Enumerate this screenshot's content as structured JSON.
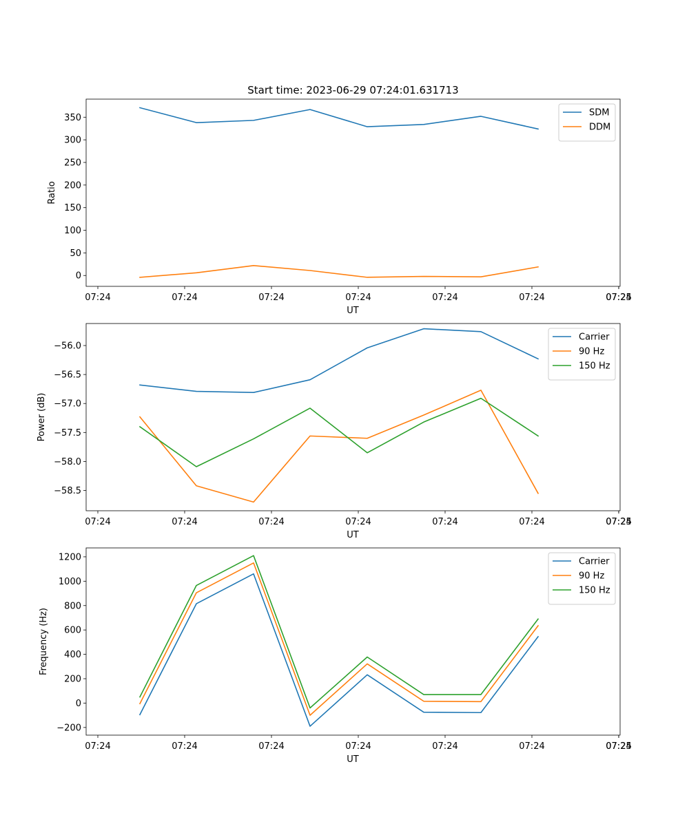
{
  "chart_data": [
    {
      "type": "line",
      "title": "Start time: 2023-06-29 07:24:01.631713",
      "xlabel": "UT",
      "ylabel": "Ratio",
      "x_tick_labels": [
        "07:24",
        "07:24",
        "07:24",
        "07:24",
        "07:24",
        "07:24",
        "07:24",
        "07:25"
      ],
      "y_ticks": [
        0,
        50,
        100,
        150,
        200,
        250,
        300,
        350
      ],
      "y_tick_labels": [
        "0",
        "50",
        "100",
        "150",
        "200",
        "250",
        "300",
        "350"
      ],
      "ylim": [
        -24,
        390
      ],
      "legend_position": "upper right",
      "series": [
        {
          "name": "SDM",
          "color": "#1f77b4",
          "values": [
            371,
            338,
            343,
            367,
            329,
            334,
            352,
            324
          ]
        },
        {
          "name": "DDM",
          "color": "#ff7f0e",
          "values": [
            -4,
            6,
            22,
            11,
            -4,
            -2,
            -3,
            19
          ]
        }
      ]
    },
    {
      "type": "line",
      "title": "",
      "xlabel": "UT",
      "ylabel": "Power (dB)",
      "x_tick_labels": [
        "07:24",
        "07:24",
        "07:24",
        "07:24",
        "07:24",
        "07:24",
        "07:24",
        "07:25"
      ],
      "y_ticks": [
        -58.5,
        -58.0,
        -57.5,
        -57.0,
        -56.5,
        -56.0
      ],
      "y_tick_labels": [
        "−58.5",
        "−58.0",
        "−57.5",
        "−57.0",
        "−56.5",
        "−56.0"
      ],
      "ylim": [
        -58.85,
        -55.62
      ],
      "legend_position": "upper right",
      "series": [
        {
          "name": "Carrier",
          "color": "#1f77b4",
          "values": [
            -56.68,
            -56.79,
            -56.81,
            -56.59,
            -56.04,
            -55.71,
            -55.76,
            -56.23
          ]
        },
        {
          "name": "90 Hz",
          "color": "#ff7f0e",
          "values": [
            -57.23,
            -58.42,
            -58.7,
            -57.56,
            -57.6,
            -57.2,
            -56.77,
            -58.55
          ]
        },
        {
          "name": "150 Hz",
          "color": "#2ca02c",
          "values": [
            -57.4,
            -58.09,
            -57.61,
            -57.08,
            -57.85,
            -57.32,
            -56.91,
            -57.56
          ]
        }
      ]
    },
    {
      "type": "line",
      "title": "",
      "xlabel": "UT",
      "ylabel": "Frequency (Hz)",
      "x_tick_labels": [
        "07:24",
        "07:24",
        "07:24",
        "07:24",
        "07:24",
        "07:24",
        "07:24",
        "07:25"
      ],
      "y_ticks": [
        -200,
        0,
        200,
        400,
        600,
        800,
        1000,
        1200
      ],
      "y_tick_labels": [
        "−200",
        "0",
        "200",
        "400",
        "600",
        "800",
        "1000",
        "1200"
      ],
      "ylim": [
        -263,
        1273
      ],
      "legend_position": "upper right",
      "series": [
        {
          "name": "Carrier",
          "color": "#1f77b4",
          "values": [
            -95,
            815,
            1060,
            -190,
            232,
            -75,
            -78,
            545
          ]
        },
        {
          "name": "90 Hz",
          "color": "#ff7f0e",
          "values": [
            -5,
            905,
            1150,
            -100,
            322,
            15,
            12,
            635
          ]
        },
        {
          "name": "150 Hz",
          "color": "#2ca02c",
          "values": [
            50,
            965,
            1210,
            -40,
            378,
            70,
            70,
            690
          ]
        }
      ]
    }
  ]
}
